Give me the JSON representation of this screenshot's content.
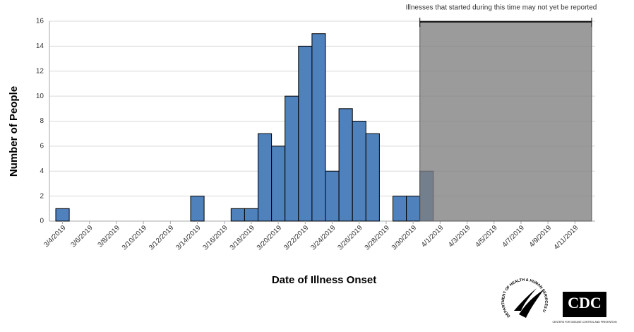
{
  "chart_data": {
    "type": "bar",
    "annotation": "Illnesses that started during this time may not yet be reported",
    "x_label": "Date of Illness Onset",
    "y_label": "Number of People",
    "categories": [
      "3/4/2019",
      null,
      "3/6/2019",
      null,
      "3/8/2019",
      null,
      "3/10/2019",
      null,
      "3/12/2019",
      null,
      "3/14/2019",
      null,
      "3/16/2019",
      null,
      "3/18/2019",
      null,
      "3/20/2019",
      null,
      "3/22/2019",
      null,
      "3/24/2019",
      null,
      "3/26/2019",
      null,
      "3/28/2019",
      null,
      "3/30/2019",
      null,
      "4/1/2019",
      null,
      "4/3/2019",
      null,
      "4/5/2019",
      null,
      "4/7/2019",
      null,
      "4/9/2019",
      null,
      "4/11/2019",
      null
    ],
    "values": [
      1,
      0,
      0,
      0,
      0,
      0,
      0,
      0,
      0,
      0,
      2,
      0,
      0,
      1,
      1,
      7,
      6,
      10,
      14,
      15,
      4,
      9,
      8,
      7,
      0,
      2,
      2,
      4,
      0,
      0,
      0,
      0,
      0,
      0,
      0,
      0,
      0,
      0,
      0,
      0
    ],
    "color": "#4f81bd",
    "ylim": [
      0,
      16
    ],
    "yticks": [
      0,
      2,
      4,
      6,
      8,
      10,
      12,
      14,
      16
    ],
    "grid": true
  },
  "logos": {
    "hhs": "DEPARTMENT OF HEALTH & HUMAN SERVICES USA",
    "cdc": "CDC",
    "cdc_sub": "CENTERS FOR DISEASE CONTROL AND PREVENTION"
  }
}
